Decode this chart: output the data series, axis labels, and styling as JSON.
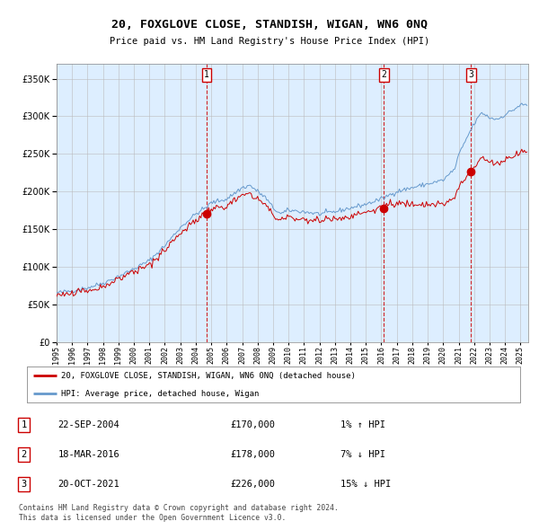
{
  "title": "20, FOXGLOVE CLOSE, STANDISH, WIGAN, WN6 0NQ",
  "subtitle": "Price paid vs. HM Land Registry's House Price Index (HPI)",
  "legend_line1": "20, FOXGLOVE CLOSE, STANDISH, WIGAN, WN6 0NQ (detached house)",
  "legend_line2": "HPI: Average price, detached house, Wigan",
  "footer1": "Contains HM Land Registry data © Crown copyright and database right 2024.",
  "footer2": "This data is licensed under the Open Government Licence v3.0.",
  "transactions": [
    {
      "num": 1,
      "date": "22-SEP-2004",
      "price": 170000,
      "hpi_pct": "1%",
      "direction": "↑"
    },
    {
      "num": 2,
      "date": "18-MAR-2016",
      "price": 178000,
      "hpi_pct": "7%",
      "direction": "↓"
    },
    {
      "num": 3,
      "date": "20-OCT-2021",
      "price": 226000,
      "hpi_pct": "15%",
      "direction": "↓"
    }
  ],
  "sale_dates_dec": [
    2004.7083,
    2016.1667,
    2021.7917
  ],
  "marker_values": [
    170000,
    178000,
    226000
  ],
  "sale_color": "#cc0000",
  "hpi_color": "#6699cc",
  "background_color": "#ddeeff",
  "plot_bg": "#ffffff",
  "ylim": [
    0,
    370000
  ],
  "yticks": [
    0,
    50000,
    100000,
    150000,
    200000,
    250000,
    300000,
    350000
  ],
  "xlim": [
    1995.0,
    2025.5
  ],
  "hpi_control_points": [
    [
      1995.0,
      65000
    ],
    [
      1996.0,
      68000
    ],
    [
      1997.0,
      72000
    ],
    [
      1998.0,
      78000
    ],
    [
      1999.0,
      87000
    ],
    [
      2000.0,
      97000
    ],
    [
      2001.0,
      108000
    ],
    [
      2002.0,
      128000
    ],
    [
      2003.0,
      152000
    ],
    [
      2004.0,
      170000
    ],
    [
      2004.75,
      180000
    ],
    [
      2005.0,
      185000
    ],
    [
      2006.0,
      190000
    ],
    [
      2007.0,
      205000
    ],
    [
      2007.5,
      208000
    ],
    [
      2008.5,
      192000
    ],
    [
      2009.0,
      178000
    ],
    [
      2009.5,
      170000
    ],
    [
      2010.0,
      175000
    ],
    [
      2011.0,
      173000
    ],
    [
      2012.0,
      170000
    ],
    [
      2013.0,
      173000
    ],
    [
      2014.0,
      178000
    ],
    [
      2015.0,
      183000
    ],
    [
      2016.0,
      190000
    ],
    [
      2017.0,
      200000
    ],
    [
      2018.0,
      205000
    ],
    [
      2019.0,
      210000
    ],
    [
      2020.0,
      215000
    ],
    [
      2020.75,
      230000
    ],
    [
      2021.0,
      248000
    ],
    [
      2021.5,
      270000
    ],
    [
      2022.0,
      290000
    ],
    [
      2022.5,
      305000
    ],
    [
      2023.0,
      298000
    ],
    [
      2023.5,
      296000
    ],
    [
      2024.0,
      302000
    ],
    [
      2024.5,
      308000
    ],
    [
      2025.0,
      315000
    ]
  ],
  "noise_seed_hpi": 42,
  "noise_seed_sale": 123,
  "noise_hpi": 1500,
  "noise_sale": 2000
}
